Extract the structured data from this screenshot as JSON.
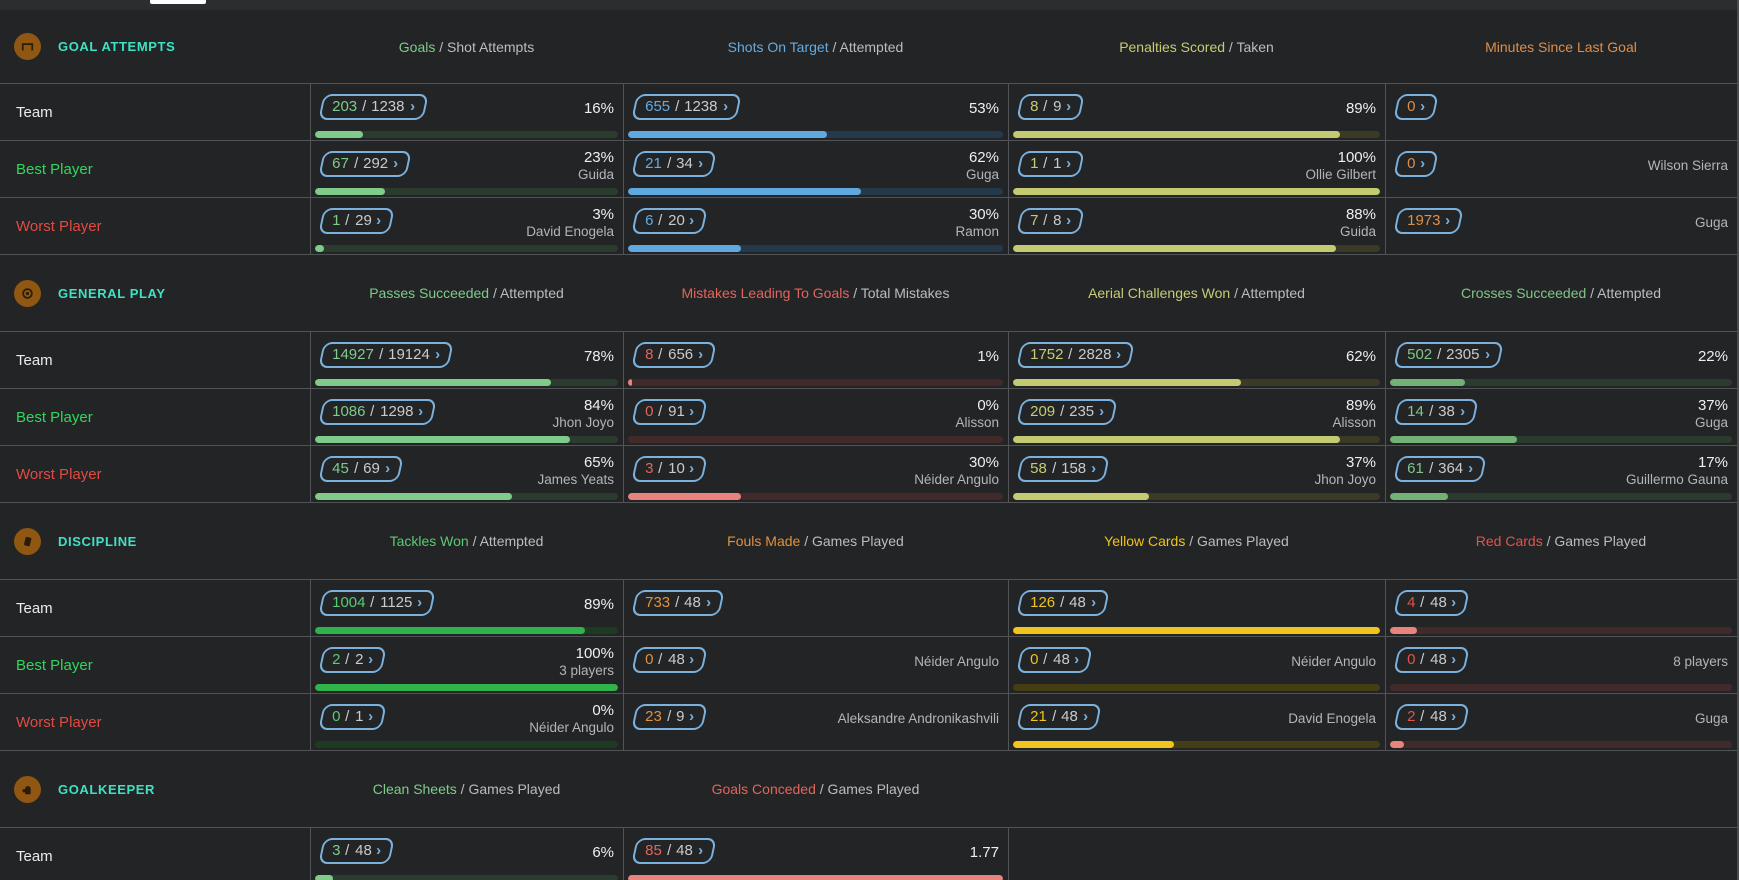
{
  "sep": "/",
  "icons": {
    "chevron_right": "›"
  },
  "colors": {
    "pill_border": "#7bb1dd",
    "section_title": "#3ee2c3",
    "team_label": "#e9ebed",
    "best_label": "#32d65c",
    "worst_label": "#e14b42",
    "header_grey": "#babdc0"
  },
  "row_labels": {
    "team": "Team",
    "best": "Best Player",
    "worst": "Worst Player"
  },
  "sections": [
    {
      "id": "goal-attempts",
      "title": "GOAL ATTEMPTS",
      "icon": "goal-net-icon",
      "columns": [
        {
          "label": "Goals",
          "suffix": " / Shot Attempts",
          "color": "#7ecb8a",
          "bar_fill": "#7ecb8a",
          "bar_track": "#2b3b2d"
        },
        {
          "label": "Shots On Target",
          "suffix": " / Attempted",
          "color": "#66abdf",
          "bar_fill": "#5fa9e0",
          "bar_track": "#24394a"
        },
        {
          "label": "Penalties Scored",
          "suffix": " / Taken",
          "color": "#c6cc74",
          "bar_fill": "#c3ca72",
          "bar_track": "#393b24"
        },
        {
          "label": "Minutes Since Last Goal",
          "suffix": "",
          "color": "#dd8e4c",
          "bar_fill": null,
          "bar_track": null
        }
      ],
      "rows": [
        {
          "label": "Team",
          "cells": [
            {
              "v": "203",
              "t": "1238",
              "pct": "16%",
              "name": "",
              "bar": 16
            },
            {
              "v": "655",
              "t": "1238",
              "pct": "53%",
              "name": "",
              "bar": 53
            },
            {
              "v": "8",
              "t": "9",
              "pct": "89%",
              "name": "",
              "bar": 89
            },
            {
              "v": "0",
              "t": null,
              "pct": "",
              "name": "",
              "bar": null
            }
          ]
        },
        {
          "label": "Best Player",
          "cells": [
            {
              "v": "67",
              "t": "292",
              "pct": "23%",
              "name": "Guida",
              "bar": 23
            },
            {
              "v": "21",
              "t": "34",
              "pct": "62%",
              "name": "Guga",
              "bar": 62
            },
            {
              "v": "1",
              "t": "1",
              "pct": "100%",
              "name": "Ollie Gilbert",
              "bar": 100
            },
            {
              "v": "0",
              "t": null,
              "pct": "",
              "name": "Wilson Sierra",
              "bar": null
            }
          ]
        },
        {
          "label": "Worst Player",
          "cells": [
            {
              "v": "1",
              "t": "29",
              "pct": "3%",
              "name": "David Enogela",
              "bar": 3
            },
            {
              "v": "6",
              "t": "20",
              "pct": "30%",
              "name": "Ramon",
              "bar": 30
            },
            {
              "v": "7",
              "t": "8",
              "pct": "88%",
              "name": "Guida",
              "bar": 88
            },
            {
              "v": "1973",
              "t": null,
              "pct": "",
              "name": "Guga",
              "bar": null
            }
          ]
        }
      ]
    },
    {
      "id": "general-play",
      "title": "GENERAL PLAY",
      "icon": "football-icon",
      "columns": [
        {
          "label": "Passes Succeeded",
          "suffix": " / Attempted",
          "color": "#7ecb8a",
          "bar_fill": "#7ecb8a",
          "bar_track": "#2b3b2d"
        },
        {
          "label": "Mistakes Leading To Goals",
          "suffix": " / Total Mistakes",
          "color": "#e2655c",
          "bar_fill": "#e8837e",
          "bar_track": "#422a2b"
        },
        {
          "label": "Aerial Challenges Won",
          "suffix": " / Attempted",
          "color": "#c6cc74",
          "bar_fill": "#c3ca72",
          "bar_track": "#393b24"
        },
        {
          "label": "Crosses Succeeded",
          "suffix": " / Attempted",
          "color": "#82c487",
          "bar_fill": "#72b277",
          "bar_track": "#2b3b2d"
        }
      ],
      "rows": [
        {
          "label": "Team",
          "cells": [
            {
              "v": "14927",
              "t": "19124",
              "pct": "78%",
              "name": "",
              "bar": 78
            },
            {
              "v": "8",
              "t": "656",
              "pct": "1%",
              "name": "",
              "bar": 1
            },
            {
              "v": "1752",
              "t": "2828",
              "pct": "62%",
              "name": "",
              "bar": 62
            },
            {
              "v": "502",
              "t": "2305",
              "pct": "22%",
              "name": "",
              "bar": 22
            }
          ]
        },
        {
          "label": "Best Player",
          "cells": [
            {
              "v": "1086",
              "t": "1298",
              "pct": "84%",
              "name": "Jhon Joyo",
              "bar": 84
            },
            {
              "v": "0",
              "t": "91",
              "pct": "0%",
              "name": "Alisson",
              "bar": 0
            },
            {
              "v": "209",
              "t": "235",
              "pct": "89%",
              "name": "Alisson",
              "bar": 89
            },
            {
              "v": "14",
              "t": "38",
              "pct": "37%",
              "name": "Guga",
              "bar": 37
            }
          ]
        },
        {
          "label": "Worst Player",
          "cells": [
            {
              "v": "45",
              "t": "69",
              "pct": "65%",
              "name": "James Yeats",
              "bar": 65
            },
            {
              "v": "3",
              "t": "10",
              "pct": "30%",
              "name": "Néider Angulo",
              "bar": 30
            },
            {
              "v": "58",
              "t": "158",
              "pct": "37%",
              "name": "Jhon Joyo",
              "bar": 37
            },
            {
              "v": "61",
              "t": "364",
              "pct": "17%",
              "name": "Guillermo Gauna",
              "bar": 17
            }
          ]
        }
      ]
    },
    {
      "id": "discipline",
      "title": "DISCIPLINE",
      "icon": "card-icon",
      "columns": [
        {
          "label": "Tackles Won",
          "suffix": " / Attempted",
          "color": "#5bca74",
          "bar_fill": "#2fb34a",
          "bar_track": "#1d3a23"
        },
        {
          "label": "Fouls Made",
          "suffix": " / Games Played",
          "color": "#e0913d",
          "bar_fill": null,
          "bar_track": null
        },
        {
          "label": "Yellow Cards",
          "suffix": " / Games Played",
          "color": "#efc31d",
          "bar_fill": "#f1c31d",
          "bar_track": "#453d13"
        },
        {
          "label": "Red Cards",
          "suffix": " / Games Played",
          "color": "#e25449",
          "bar_fill": "#e8837e",
          "bar_track": "#422a2b"
        }
      ],
      "rows": [
        {
          "label": "Team",
          "cells": [
            {
              "v": "1004",
              "t": "1125",
              "pct": "89%",
              "name": "",
              "bar": 89
            },
            {
              "v": "733",
              "t": "48",
              "pct": "",
              "name": "",
              "bar": null
            },
            {
              "v": "126",
              "t": "48",
              "pct": "",
              "name": "",
              "bar": 100
            },
            {
              "v": "4",
              "t": "48",
              "pct": "",
              "name": "",
              "bar": 8
            }
          ]
        },
        {
          "label": "Best Player",
          "cells": [
            {
              "v": "2",
              "t": "2",
              "pct": "100%",
              "name": "3 players",
              "bar": 100
            },
            {
              "v": "0",
              "t": "48",
              "pct": "",
              "name": "Néider Angulo",
              "bar": null
            },
            {
              "v": "0",
              "t": "48",
              "pct": "",
              "name": "Néider Angulo",
              "bar": 0
            },
            {
              "v": "0",
              "t": "48",
              "pct": "",
              "name": "8 players",
              "bar": 0
            }
          ]
        },
        {
          "label": "Worst Player",
          "cells": [
            {
              "v": "0",
              "t": "1",
              "pct": "0%",
              "name": "Néider Angulo",
              "bar": 0
            },
            {
              "v": "23",
              "t": "9",
              "pct": "",
              "name": "Aleksandre Andronikashvili",
              "bar": null
            },
            {
              "v": "21",
              "t": "48",
              "pct": "",
              "name": "David Enogela",
              "bar": 44
            },
            {
              "v": "2",
              "t": "48",
              "pct": "",
              "name": "Guga",
              "bar": 4
            }
          ]
        }
      ]
    },
    {
      "id": "goalkeeper",
      "title": "GOALKEEPER",
      "icon": "glove-icon",
      "columns": [
        {
          "label": "Clean Sheets",
          "suffix": " / Games Played",
          "color": "#7ecb8a",
          "bar_fill": "#7ecb8a",
          "bar_track": "#2b3b2d"
        },
        {
          "label": "Goals Conceded",
          "suffix": " / Games Played",
          "color": "#e2655c",
          "bar_fill": "#e8837e",
          "bar_track": "#422a2b"
        },
        null,
        null
      ],
      "rows": [
        {
          "label": "Team",
          "cells": [
            {
              "v": "3",
              "t": "48",
              "pct": "6%",
              "name": "",
              "bar": 6
            },
            {
              "v": "85",
              "t": "48",
              "pct": "1.77",
              "name": "",
              "bar": 100
            },
            null,
            null
          ]
        }
      ]
    }
  ]
}
